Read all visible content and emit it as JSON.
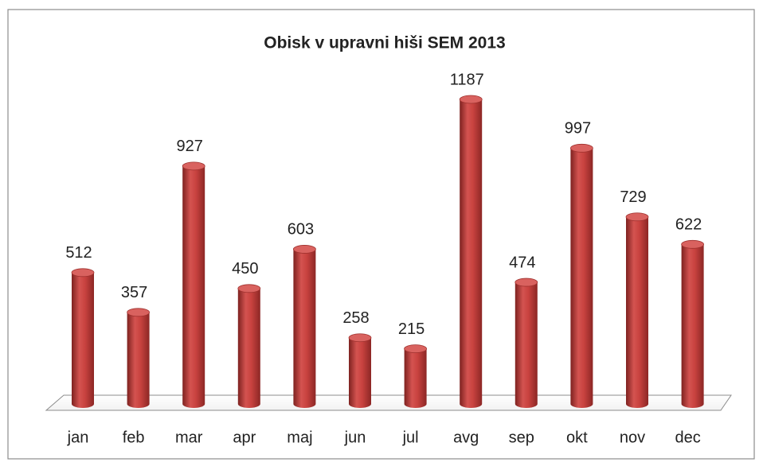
{
  "chart_data": {
    "type": "bar",
    "title": "Obisk v upravni hiši SEM 2013",
    "categories": [
      "jan",
      "feb",
      "mar",
      "apr",
      "maj",
      "jun",
      "jul",
      "avg",
      "sep",
      "okt",
      "nov",
      "dec"
    ],
    "values": [
      512,
      357,
      927,
      450,
      603,
      258,
      215,
      1187,
      474,
      997,
      729,
      622
    ],
    "color": "#c0504d",
    "grid": false,
    "legend": false
  }
}
